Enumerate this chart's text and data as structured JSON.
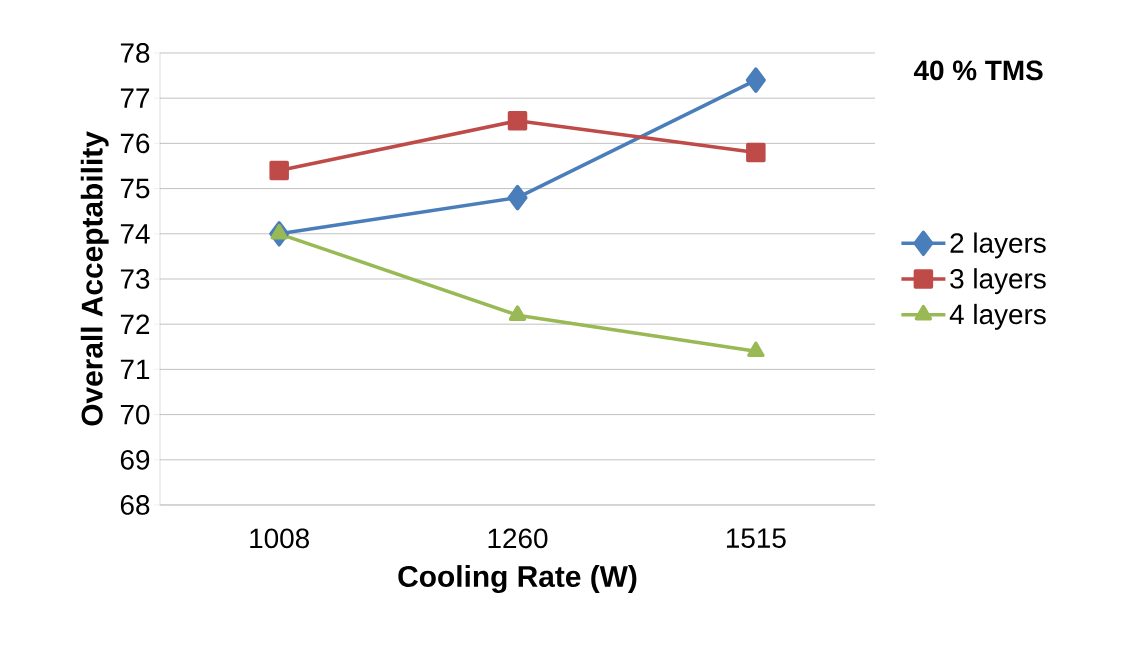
{
  "chart_data": {
    "type": "line",
    "xlabel": "Cooling Rate (W)",
    "ylabel": "Overall Acceptability",
    "categories": [
      "1008",
      "1260",
      "1515"
    ],
    "series": [
      {
        "name": "2 layers",
        "color": "#4a7ebb",
        "marker": "diamond",
        "values": [
          74.0,
          74.8,
          77.4
        ]
      },
      {
        "name": "3 layers",
        "color": "#be4b48",
        "marker": "square",
        "values": [
          75.4,
          76.5,
          75.8
        ]
      },
      {
        "name": "4 layers",
        "color": "#98b954",
        "marker": "triangle",
        "values": [
          74.0,
          72.2,
          71.4
        ]
      }
    ],
    "ylim": [
      68,
      78
    ],
    "yticks": [
      68,
      69,
      70,
      71,
      72,
      73,
      74,
      75,
      76,
      77,
      78
    ],
    "grid": "y",
    "legend": "right",
    "line_style": "solid",
    "annotations": [
      "40 % TMS"
    ]
  }
}
